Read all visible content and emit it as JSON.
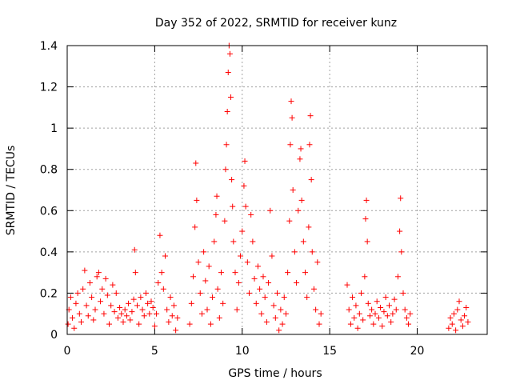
{
  "chart_data": {
    "type": "scatter",
    "title": "Day 352 of 2022, SRMTID for receiver kunz",
    "xlabel": "GPS time / hours",
    "ylabel": "SRMTID / TECUs",
    "xlim": [
      0,
      24
    ],
    "ylim": [
      0,
      1.4
    ],
    "grid": true,
    "marker": "+",
    "color": "#ff0000",
    "x_ticks": [
      0,
      5,
      10,
      15,
      20
    ],
    "x_tick_labels": [
      "0",
      "5",
      "10",
      "15",
      "20"
    ],
    "y_ticks": [
      0,
      0.2,
      0.4,
      0.6,
      0.8,
      1.0,
      1.2,
      1.4
    ],
    "y_tick_labels": [
      "0",
      "0.2",
      "0.4",
      "0.6",
      "0.8",
      "1",
      "1.2",
      "1.4"
    ],
    "series": [
      {
        "name": "SRMTID",
        "points": [
          [
            0.05,
            0.05
          ],
          [
            0.1,
            0.12
          ],
          [
            0.2,
            0.18
          ],
          [
            0.3,
            0.08
          ],
          [
            0.4,
            0.03
          ],
          [
            0.5,
            0.15
          ],
          [
            0.6,
            0.2
          ],
          [
            0.7,
            0.1
          ],
          [
            0.8,
            0.06
          ],
          [
            0.9,
            0.22
          ],
          [
            1.0,
            0.31
          ],
          [
            1.1,
            0.14
          ],
          [
            1.2,
            0.09
          ],
          [
            1.3,
            0.25
          ],
          [
            1.4,
            0.18
          ],
          [
            1.5,
            0.07
          ],
          [
            1.6,
            0.12
          ],
          [
            1.7,
            0.28
          ],
          [
            1.8,
            0.3
          ],
          [
            1.9,
            0.16
          ],
          [
            2.0,
            0.22
          ],
          [
            2.1,
            0.1
          ],
          [
            2.2,
            0.27
          ],
          [
            2.3,
            0.19
          ],
          [
            2.4,
            0.05
          ],
          [
            2.5,
            0.14
          ],
          [
            2.6,
            0.24
          ],
          [
            2.7,
            0.11
          ],
          [
            2.8,
            0.2
          ],
          [
            2.9,
            0.08
          ],
          [
            3.0,
            0.13
          ],
          [
            3.1,
            0.1
          ],
          [
            3.2,
            0.06
          ],
          [
            3.3,
            0.12
          ],
          [
            3.4,
            0.09
          ],
          [
            3.5,
            0.15
          ],
          [
            3.6,
            0.07
          ],
          [
            3.7,
            0.11
          ],
          [
            3.8,
            0.17
          ],
          [
            3.85,
            0.41
          ],
          [
            3.9,
            0.3
          ],
          [
            4.0,
            0.14
          ],
          [
            4.1,
            0.05
          ],
          [
            4.2,
            0.18
          ],
          [
            4.3,
            0.12
          ],
          [
            4.4,
            0.09
          ],
          [
            4.5,
            0.2
          ],
          [
            4.6,
            0.15
          ],
          [
            4.7,
            0.1
          ],
          [
            4.8,
            0.16
          ],
          [
            4.9,
            0.13
          ],
          [
            5.0,
            0.04
          ],
          [
            5.1,
            0.1
          ],
          [
            5.2,
            0.25
          ],
          [
            5.3,
            0.48
          ],
          [
            5.4,
            0.3
          ],
          [
            5.5,
            0.22
          ],
          [
            5.6,
            0.38
          ],
          [
            5.7,
            0.12
          ],
          [
            5.8,
            0.06
          ],
          [
            5.9,
            0.18
          ],
          [
            6.0,
            0.09
          ],
          [
            6.1,
            0.14
          ],
          [
            6.2,
            0.02
          ],
          [
            6.3,
            0.08
          ],
          [
            7.0,
            0.05
          ],
          [
            7.1,
            0.15
          ],
          [
            7.2,
            0.28
          ],
          [
            7.3,
            0.52
          ],
          [
            7.35,
            0.83
          ],
          [
            7.4,
            0.65
          ],
          [
            7.5,
            0.35
          ],
          [
            7.6,
            0.2
          ],
          [
            7.7,
            0.1
          ],
          [
            7.8,
            0.4
          ],
          [
            7.9,
            0.26
          ],
          [
            8.0,
            0.12
          ],
          [
            8.1,
            0.33
          ],
          [
            8.2,
            0.05
          ],
          [
            8.3,
            0.18
          ],
          [
            8.4,
            0.45
          ],
          [
            8.5,
            0.58
          ],
          [
            8.55,
            0.67
          ],
          [
            8.6,
            0.22
          ],
          [
            8.7,
            0.08
          ],
          [
            8.8,
            0.3
          ],
          [
            8.9,
            0.15
          ],
          [
            9.0,
            0.55
          ],
          [
            9.05,
            0.8
          ],
          [
            9.1,
            0.92
          ],
          [
            9.15,
            1.08
          ],
          [
            9.2,
            1.27
          ],
          [
            9.25,
            1.4
          ],
          [
            9.3,
            1.36
          ],
          [
            9.35,
            1.15
          ],
          [
            9.4,
            0.75
          ],
          [
            9.45,
            0.62
          ],
          [
            9.5,
            0.45
          ],
          [
            9.6,
            0.3
          ],
          [
            9.7,
            0.12
          ],
          [
            9.8,
            0.25
          ],
          [
            9.9,
            0.38
          ],
          [
            10.0,
            0.5
          ],
          [
            10.1,
            0.72
          ],
          [
            10.15,
            0.84
          ],
          [
            10.2,
            0.62
          ],
          [
            10.3,
            0.35
          ],
          [
            10.4,
            0.2
          ],
          [
            10.5,
            0.58
          ],
          [
            10.6,
            0.45
          ],
          [
            10.7,
            0.27
          ],
          [
            10.8,
            0.15
          ],
          [
            10.9,
            0.33
          ],
          [
            11.0,
            0.22
          ],
          [
            11.1,
            0.1
          ],
          [
            11.2,
            0.28
          ],
          [
            11.3,
            0.18
          ],
          [
            11.4,
            0.06
          ],
          [
            11.5,
            0.25
          ],
          [
            11.6,
            0.6
          ],
          [
            11.7,
            0.38
          ],
          [
            11.8,
            0.14
          ],
          [
            11.9,
            0.08
          ],
          [
            12.0,
            0.2
          ],
          [
            12.1,
            0.02
          ],
          [
            12.2,
            0.12
          ],
          [
            12.3,
            0.05
          ],
          [
            12.4,
            0.18
          ],
          [
            12.5,
            0.1
          ],
          [
            12.6,
            0.3
          ],
          [
            12.7,
            0.55
          ],
          [
            12.75,
            0.92
          ],
          [
            12.8,
            1.13
          ],
          [
            12.85,
            1.05
          ],
          [
            12.9,
            0.7
          ],
          [
            13.0,
            0.4
          ],
          [
            13.1,
            0.25
          ],
          [
            13.2,
            0.6
          ],
          [
            13.3,
            0.85
          ],
          [
            13.35,
            0.9
          ],
          [
            13.4,
            0.65
          ],
          [
            13.5,
            0.45
          ],
          [
            13.6,
            0.3
          ],
          [
            13.7,
            0.18
          ],
          [
            13.8,
            0.52
          ],
          [
            13.85,
            0.92
          ],
          [
            13.9,
            1.06
          ],
          [
            13.95,
            0.75
          ],
          [
            14.0,
            0.4
          ],
          [
            14.1,
            0.22
          ],
          [
            14.2,
            0.12
          ],
          [
            14.3,
            0.35
          ],
          [
            14.4,
            0.05
          ],
          [
            14.5,
            0.1
          ],
          [
            16.0,
            0.24
          ],
          [
            16.1,
            0.12
          ],
          [
            16.2,
            0.05
          ],
          [
            16.3,
            0.18
          ],
          [
            16.4,
            0.08
          ],
          [
            16.5,
            0.14
          ],
          [
            16.6,
            0.03
          ],
          [
            16.7,
            0.1
          ],
          [
            16.8,
            0.2
          ],
          [
            16.9,
            0.07
          ],
          [
            17.0,
            0.28
          ],
          [
            17.05,
            0.56
          ],
          [
            17.1,
            0.65
          ],
          [
            17.15,
            0.45
          ],
          [
            17.2,
            0.15
          ],
          [
            17.3,
            0.09
          ],
          [
            17.4,
            0.12
          ],
          [
            17.5,
            0.05
          ],
          [
            17.6,
            0.1
          ],
          [
            17.7,
            0.16
          ],
          [
            17.8,
            0.08
          ],
          [
            17.9,
            0.13
          ],
          [
            18.0,
            0.04
          ],
          [
            18.1,
            0.11
          ],
          [
            18.2,
            0.18
          ],
          [
            18.3,
            0.09
          ],
          [
            18.4,
            0.14
          ],
          [
            18.5,
            0.06
          ],
          [
            18.6,
            0.1
          ],
          [
            18.7,
            0.17
          ],
          [
            18.8,
            0.12
          ],
          [
            18.9,
            0.28
          ],
          [
            19.0,
            0.5
          ],
          [
            19.05,
            0.66
          ],
          [
            19.1,
            0.4
          ],
          [
            19.2,
            0.2
          ],
          [
            19.3,
            0.12
          ],
          [
            19.4,
            0.08
          ],
          [
            19.5,
            0.05
          ],
          [
            19.6,
            0.1
          ],
          [
            21.8,
            0.03
          ],
          [
            21.9,
            0.08
          ],
          [
            22.0,
            0.05
          ],
          [
            22.1,
            0.1
          ],
          [
            22.2,
            0.02
          ],
          [
            22.3,
            0.12
          ],
          [
            22.4,
            0.16
          ],
          [
            22.5,
            0.07
          ],
          [
            22.6,
            0.04
          ],
          [
            22.7,
            0.09
          ],
          [
            22.8,
            0.13
          ],
          [
            22.9,
            0.06
          ]
        ]
      }
    ]
  }
}
